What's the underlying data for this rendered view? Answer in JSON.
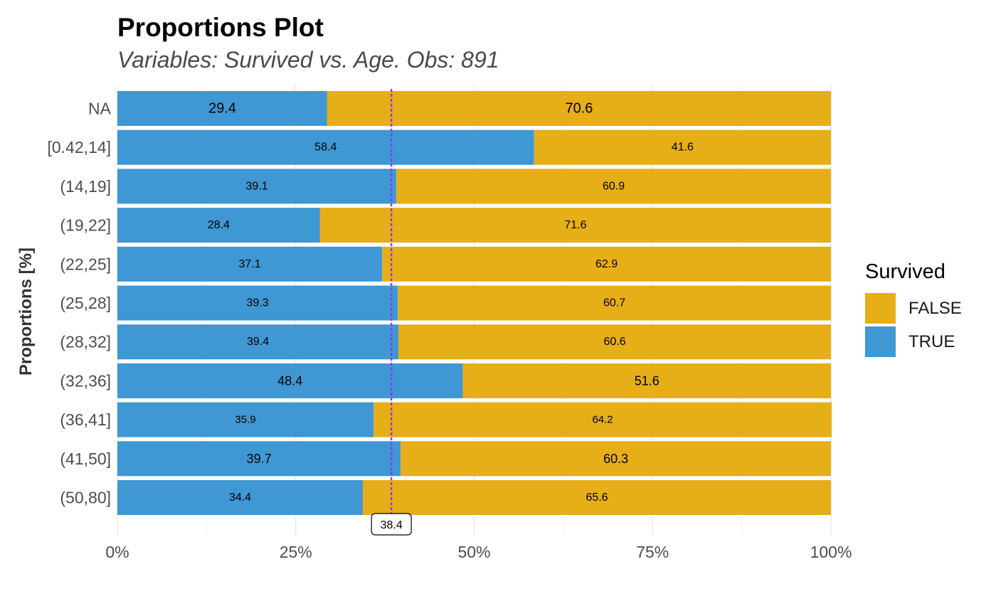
{
  "chart_data": {
    "type": "bar",
    "stacked": true,
    "orientation": "horizontal",
    "title": "Proportions Plot",
    "subtitle": "Variables: Survived vs. Age. Obs: 891",
    "ylabel": "Proportions [%]",
    "xlabel": "",
    "xlim": [
      0,
      100
    ],
    "x_ticks": [
      "0%",
      "25%",
      "50%",
      "75%",
      "100%"
    ],
    "x_tick_values": [
      0,
      25,
      50,
      75,
      100
    ],
    "categories": [
      "NA",
      "[0.42,14]",
      "(14,19]",
      "(19,22]",
      "(22,25]",
      "(25,28]",
      "(28,32]",
      "(32,36]",
      "(36,41]",
      "(41,50]",
      "(50,80]"
    ],
    "series": [
      {
        "name": "TRUE",
        "color": "#3f97d3",
        "values": [
          29.4,
          58.4,
          39.1,
          28.4,
          37.1,
          39.3,
          39.4,
          48.4,
          35.9,
          39.7,
          34.4
        ],
        "labels": [
          "29.4",
          "58.4",
          "39.1",
          "28.4",
          "37.1",
          "39.3",
          "39.4",
          "48.4",
          "35.9",
          "39.7",
          "34.4"
        ]
      },
      {
        "name": "FALSE",
        "color": "#e6ae17",
        "values": [
          70.6,
          41.6,
          60.9,
          71.6,
          62.9,
          60.7,
          60.6,
          51.6,
          64.2,
          60.3,
          65.6
        ],
        "labels": [
          "70.6",
          "41.6",
          "60.9",
          "71.6",
          "62.9",
          "60.7",
          "60.6",
          "51.6",
          "64.2",
          "60.3",
          "65.6"
        ]
      }
    ],
    "data_label_sizes": [
      20,
      16,
      16,
      16,
      16,
      16,
      16,
      18,
      15,
      18,
      16
    ],
    "reference_line": {
      "value": 38.4,
      "label": "38.4",
      "color": "#9b30ff",
      "style": "dotted"
    },
    "legend": {
      "title": "Survived",
      "position": "right",
      "items": [
        {
          "label": "FALSE",
          "color": "#e6ae17"
        },
        {
          "label": "TRUE",
          "color": "#3f97d3"
        }
      ]
    },
    "grid": true
  }
}
